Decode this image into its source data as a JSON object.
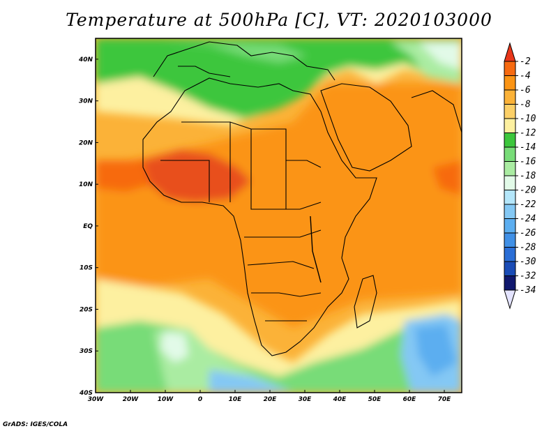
{
  "title": "Temperature at 500hPa [C], VT: 2020103000",
  "credit": "GrADS: IGES/COLA",
  "map": {
    "lon_ticks": [
      "30W",
      "20W",
      "10W",
      "0",
      "10E",
      "20E",
      "30E",
      "40E",
      "50E",
      "60E",
      "70E"
    ],
    "lat_ticks": [
      "40N",
      "30N",
      "20N",
      "10N",
      "EQ",
      "10S",
      "20S",
      "30S",
      "40S"
    ],
    "lon_range": [
      -30,
      75
    ],
    "lat_range": [
      -40,
      45
    ]
  },
  "colorbar": {
    "labels": [
      "-2",
      "-4",
      "-6",
      "-8",
      "-10",
      "-12",
      "-14",
      "-16",
      "-18",
      "-20",
      "-22",
      "-24",
      "-26",
      "-28",
      "-30",
      "-32",
      "-34"
    ],
    "colors": [
      "#e8361a",
      "#f76a10",
      "#fb9414",
      "#fbb238",
      "#fcd068",
      "#fdf0a0",
      "#3cc63c",
      "#78dc78",
      "#aaeca2",
      "#e2fae8",
      "#b4e6fa",
      "#84c8f4",
      "#5caef0",
      "#4090e6",
      "#2a6ed6",
      "#1a4cb6",
      "#10186e",
      "#e4e4ff"
    ]
  },
  "colors": {
    "hot": "#e8501a",
    "warm_orange": "#fb9414",
    "light_orange": "#fbb238",
    "yellow": "#fdf0a0",
    "green": "#3cc63c",
    "light_green": "#aaeca2",
    "cyan": "#e2fae8",
    "blue": "#5caef0"
  }
}
